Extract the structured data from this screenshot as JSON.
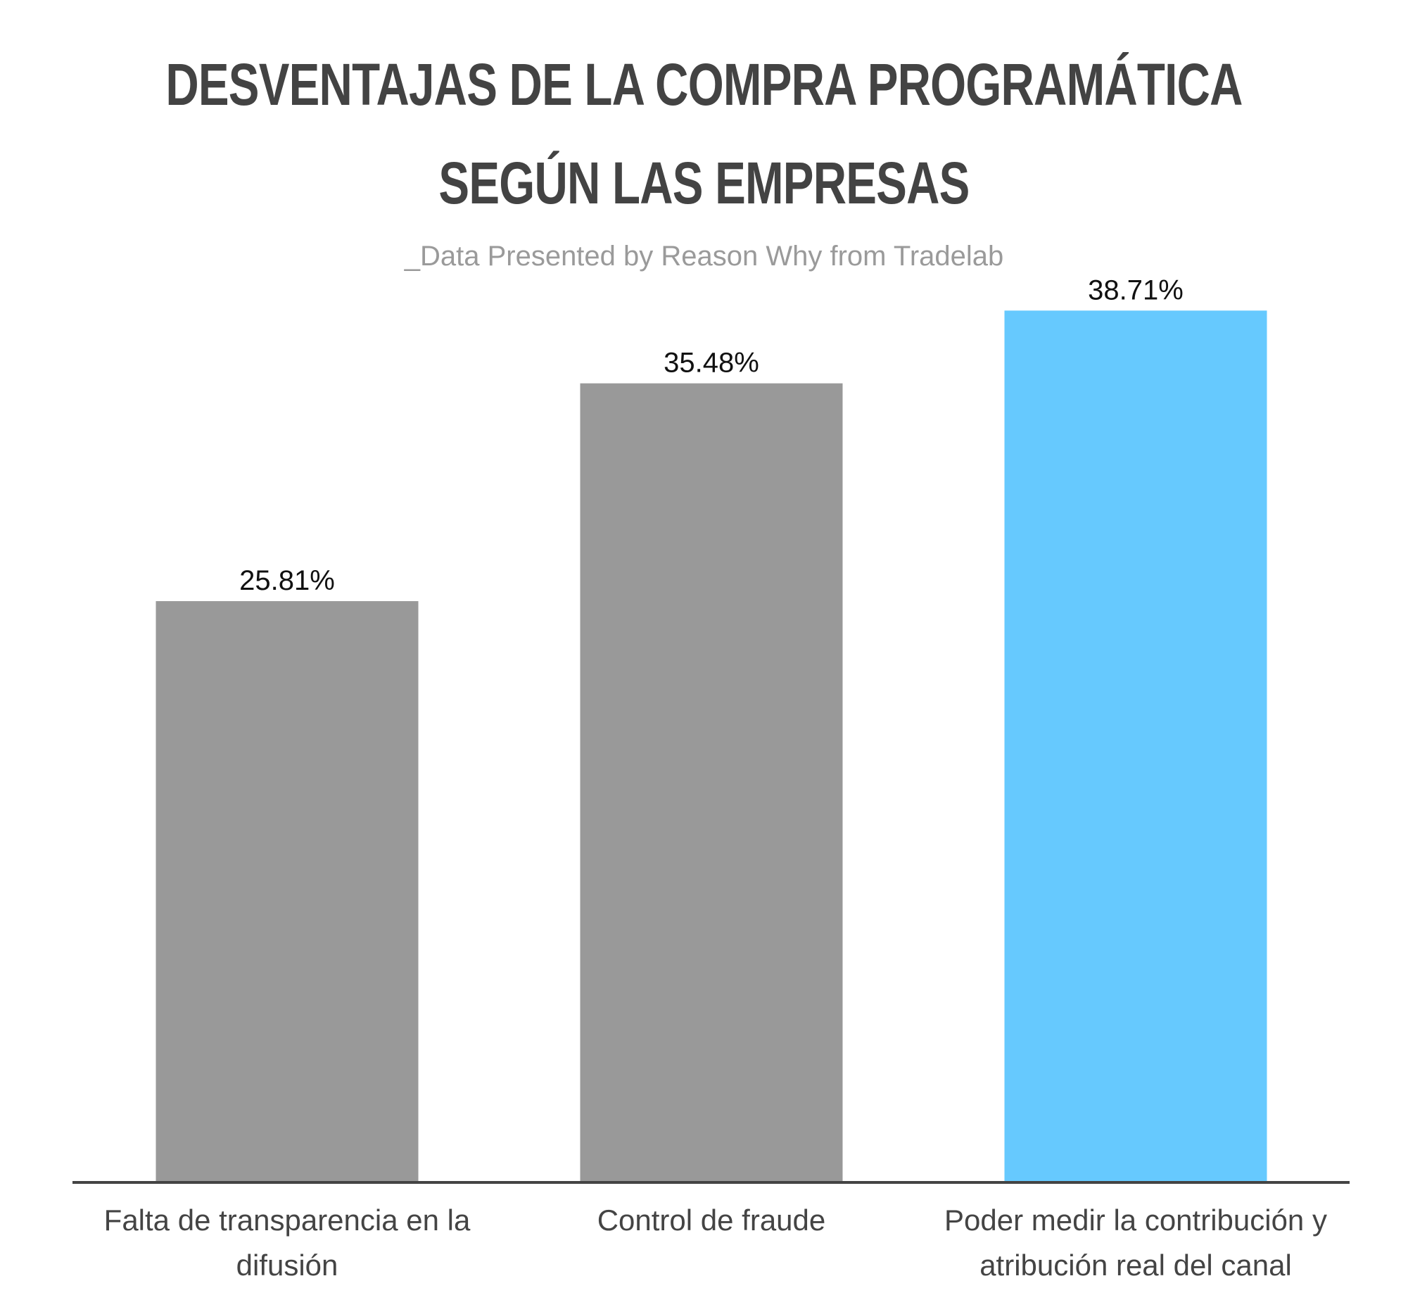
{
  "header": {
    "title_lines": [
      "DESVENTAJAS DE LA COMPRA PROGRAMÁTICA",
      "SEGÚN LAS EMPRESAS"
    ],
    "subtitle": "_Data Presented by Reason Why from Tradelab"
  },
  "chart_data": {
    "type": "bar",
    "title": "DESVENTAJAS DE LA COMPRA PROGRAMÁTICA SEGÚN LAS EMPRESAS",
    "subtitle": "_Data Presented by Reason Why from Tradelab",
    "categories": [
      [
        "Falta de transparencia en la",
        "difusión"
      ],
      [
        "Control de fraude"
      ],
      [
        "Poder medir la contribución y",
        "atribución real del canal"
      ]
    ],
    "values": [
      25.81,
      35.48,
      38.71
    ],
    "value_labels": [
      "25.81%",
      "35.48%",
      "38.71%"
    ],
    "colors": [
      "#999999",
      "#999999",
      "#66c9fe"
    ],
    "axis_color": "#444444",
    "ylim": [
      0,
      40
    ],
    "grid": false,
    "legend": "none"
  }
}
